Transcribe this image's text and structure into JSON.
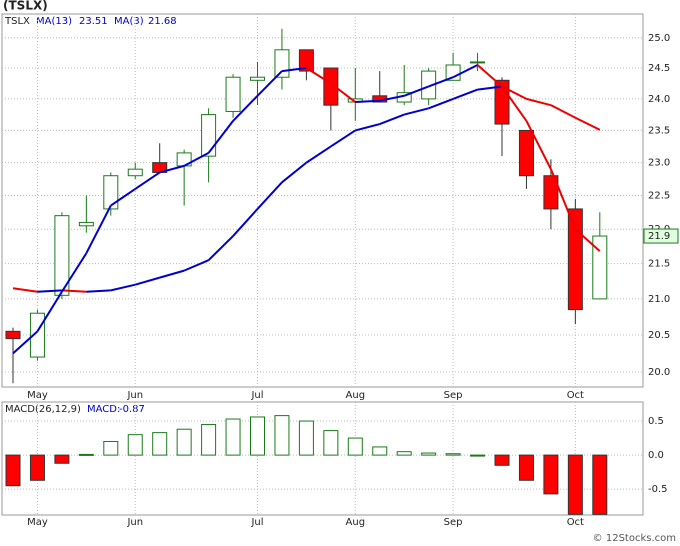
{
  "chart_data": [
    {
      "type": "candlestick",
      "title": "(TSLX)",
      "symbol": "TSLX",
      "categories": [
        null,
        "May",
        null,
        null,
        null,
        "Jun",
        null,
        null,
        null,
        null,
        "Jul",
        null,
        null,
        null,
        "Aug",
        null,
        null,
        null,
        "Sep",
        null,
        null,
        null,
        null,
        "Oct",
        null
      ],
      "open": [
        20.55,
        20.2,
        21.05,
        22.05,
        22.3,
        22.8,
        23.0,
        22.95,
        23.1,
        23.8,
        24.3,
        24.35,
        24.8,
        24.5,
        23.95,
        24.05,
        23.95,
        24.0,
        24.3,
        24.6,
        24.3,
        23.5,
        22.8,
        22.3,
        21.0
      ],
      "high": [
        20.6,
        20.85,
        22.25,
        22.5,
        22.85,
        23.0,
        23.3,
        23.2,
        23.85,
        24.4,
        24.6,
        25.15,
        24.8,
        24.5,
        24.5,
        24.45,
        24.55,
        24.5,
        24.75,
        24.75,
        24.35,
        23.5,
        23.05,
        22.45,
        22.25
      ],
      "low": [
        19.85,
        20.15,
        21.0,
        21.95,
        22.2,
        22.75,
        22.85,
        22.35,
        22.7,
        23.7,
        23.9,
        24.15,
        24.3,
        23.5,
        23.65,
        23.95,
        23.9,
        23.9,
        24.3,
        24.45,
        23.1,
        22.6,
        22.0,
        20.65,
        21.0
      ],
      "close": [
        20.45,
        20.8,
        22.2,
        22.1,
        22.8,
        22.9,
        22.85,
        23.15,
        23.75,
        24.35,
        24.35,
        24.8,
        24.45,
        23.9,
        24.0,
        23.95,
        24.1,
        24.45,
        24.55,
        24.6,
        23.6,
        22.8,
        22.3,
        20.85,
        21.9
      ],
      "up_color": "#1a7a1a",
      "down_color": "#ff0000",
      "lines": [
        {
          "name": "MA(13)",
          "up_color": "#0000cc",
          "down_color": "#ee0000",
          "values": [
            21.15,
            21.1,
            21.12,
            21.1,
            21.12,
            21.2,
            21.3,
            21.4,
            21.55,
            21.9,
            22.3,
            22.7,
            23.0,
            23.25,
            23.5,
            23.6,
            23.75,
            23.85,
            24.0,
            24.15,
            24.2,
            24.0,
            23.9,
            23.7,
            23.51
          ]
        },
        {
          "name": "MA(3)",
          "up_color": "#0000cc",
          "down_color": "#ee0000",
          "values": [
            20.25,
            20.55,
            21.1,
            21.65,
            22.35,
            22.6,
            22.85,
            22.95,
            23.15,
            23.65,
            24.05,
            24.45,
            24.5,
            24.25,
            23.95,
            23.97,
            24.05,
            24.2,
            24.35,
            24.55,
            24.2,
            23.65,
            22.9,
            22.0,
            21.68
          ]
        }
      ],
      "log_scale": true,
      "grid": true,
      "ylim": [
        19.8,
        25.4
      ],
      "yticks": [
        {
          "value": 20,
          "label": "20.0"
        },
        20.5,
        {
          "value": 21,
          "label": "21.0"
        },
        21.5,
        {
          "value": 22,
          "label": "22.0"
        },
        22.5,
        {
          "value": 23,
          "label": "23.0"
        },
        23.5,
        {
          "value": 24,
          "label": "24.0"
        },
        24.5,
        {
          "value": 25,
          "label": "25.0"
        }
      ]
    },
    {
      "type": "bar",
      "name": "MACD(26,12,9)",
      "value_prefix": "MACD:",
      "categories": [
        null,
        "May",
        null,
        null,
        null,
        "Jun",
        null,
        null,
        null,
        null,
        "Jul",
        null,
        null,
        null,
        "Aug",
        null,
        null,
        null,
        "Sep",
        null,
        null,
        null,
        null,
        "Oct",
        null
      ],
      "values": [
        -0.45,
        -0.37,
        -0.12,
        0.01,
        0.2,
        0.3,
        0.33,
        0.38,
        0.45,
        0.53,
        0.56,
        0.58,
        0.5,
        0.36,
        0.25,
        0.12,
        0.05,
        0.03,
        0.02,
        0.0,
        -0.15,
        -0.37,
        -0.57,
        -0.87,
        -0.87
      ],
      "up_color": "#1a7a1a",
      "down_color": "#ff0000",
      "grid": true,
      "ylim": [
        -0.88,
        0.78
      ],
      "yticks": [
        0.5,
        {
          "value": 0,
          "label": "0.0"
        },
        -0.5
      ]
    }
  ],
  "footer": "© 12Stocks.com"
}
